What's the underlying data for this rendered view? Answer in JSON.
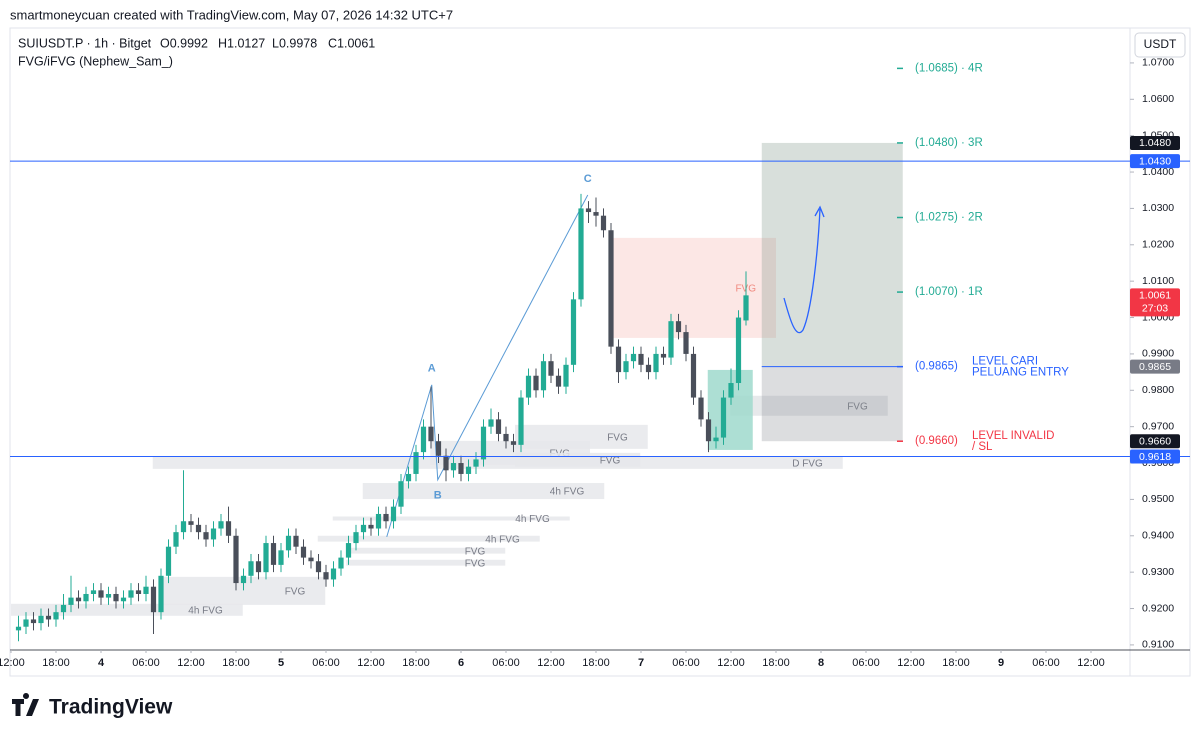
{
  "header": {
    "caption": "smartmoneycuan created with TradingView.com, May 07, 2026 14:32 UTC+7",
    "logo": "TradingView"
  },
  "chart_data": {
    "type": "candlestick",
    "symbol": "SUIUSDT.P · 1h · Bitget",
    "ohlc_legend": [
      "O0.9992",
      "H1.0127",
      "L0.9978",
      "C1.0061"
    ],
    "indicator": "FVG/iFVG (Nephew_Sam_)",
    "currency": "USDT",
    "up_color": "#22ab94",
    "down_color": "#4a4f5a",
    "x": [
      1,
      2,
      3,
      4,
      5,
      6,
      7,
      8,
      9,
      10,
      11,
      12,
      13,
      14,
      15,
      16,
      17,
      18,
      19,
      20,
      21,
      22,
      23,
      24,
      25,
      26,
      27,
      28,
      29,
      30,
      31,
      32,
      33,
      34,
      35,
      36,
      37,
      38,
      39,
      40,
      41,
      42,
      43,
      44,
      45,
      46,
      47,
      48,
      49,
      50,
      51,
      52,
      53,
      54,
      55,
      56,
      57,
      58,
      59,
      60,
      61,
      62,
      63,
      64,
      65,
      66,
      67,
      68,
      69,
      70,
      71,
      72,
      73,
      74,
      75,
      76,
      77,
      78,
      79,
      80,
      81,
      82,
      83,
      84,
      85,
      86,
      87,
      88,
      89,
      90,
      91,
      92,
      93,
      94,
      95,
      96,
      97,
      98
    ],
    "ohlc": [
      [
        0.914,
        0.918,
        0.911,
        0.915
      ],
      [
        0.915,
        0.919,
        0.913,
        0.917
      ],
      [
        0.917,
        0.919,
        0.914,
        0.916
      ],
      [
        0.916,
        0.92,
        0.914,
        0.918
      ],
      [
        0.918,
        0.92,
        0.915,
        0.917
      ],
      [
        0.917,
        0.921,
        0.915,
        0.919
      ],
      [
        0.919,
        0.924,
        0.917,
        0.921
      ],
      [
        0.921,
        0.929,
        0.919,
        0.923
      ],
      [
        0.923,
        0.925,
        0.92,
        0.922
      ],
      [
        0.922,
        0.926,
        0.92,
        0.924
      ],
      [
        0.924,
        0.927,
        0.922,
        0.925
      ],
      [
        0.925,
        0.927,
        0.921,
        0.923
      ],
      [
        0.923,
        0.926,
        0.921,
        0.924
      ],
      [
        0.924,
        0.926,
        0.92,
        0.922
      ],
      [
        0.922,
        0.925,
        0.92,
        0.923
      ],
      [
        0.923,
        0.927,
        0.921,
        0.925
      ],
      [
        0.925,
        0.927,
        0.922,
        0.924
      ],
      [
        0.924,
        0.929,
        0.922,
        0.926
      ],
      [
        0.926,
        0.928,
        0.913,
        0.919
      ],
      [
        0.919,
        0.931,
        0.917,
        0.929
      ],
      [
        0.929,
        0.939,
        0.927,
        0.937
      ],
      [
        0.937,
        0.943,
        0.935,
        0.941
      ],
      [
        0.941,
        0.958,
        0.939,
        0.944
      ],
      [
        0.944,
        0.946,
        0.941,
        0.943
      ],
      [
        0.943,
        0.945,
        0.939,
        0.941
      ],
      [
        0.941,
        0.943,
        0.937,
        0.939
      ],
      [
        0.939,
        0.944,
        0.937,
        0.942
      ],
      [
        0.942,
        0.946,
        0.94,
        0.944
      ],
      [
        0.944,
        0.948,
        0.938,
        0.94
      ],
      [
        0.94,
        0.942,
        0.925,
        0.927
      ],
      [
        0.927,
        0.931,
        0.925,
        0.929
      ],
      [
        0.929,
        0.935,
        0.927,
        0.933
      ],
      [
        0.933,
        0.935,
        0.928,
        0.93
      ],
      [
        0.93,
        0.94,
        0.928,
        0.938
      ],
      [
        0.938,
        0.94,
        0.93,
        0.932
      ],
      [
        0.932,
        0.938,
        0.93,
        0.936
      ],
      [
        0.936,
        0.942,
        0.934,
        0.94
      ],
      [
        0.94,
        0.942,
        0.935,
        0.937
      ],
      [
        0.937,
        0.939,
        0.932,
        0.934
      ],
      [
        0.934,
        0.936,
        0.931,
        0.933
      ],
      [
        0.933,
        0.935,
        0.928,
        0.93
      ],
      [
        0.93,
        0.932,
        0.926,
        0.928
      ],
      [
        0.928,
        0.933,
        0.926,
        0.931
      ],
      [
        0.931,
        0.936,
        0.929,
        0.934
      ],
      [
        0.934,
        0.94,
        0.932,
        0.938
      ],
      [
        0.938,
        0.943,
        0.936,
        0.941
      ],
      [
        0.941,
        0.945,
        0.939,
        0.943
      ],
      [
        0.943,
        0.945,
        0.94,
        0.942
      ],
      [
        0.942,
        0.948,
        0.94,
        0.946
      ],
      [
        0.946,
        0.948,
        0.942,
        0.944
      ],
      [
        0.944,
        0.95,
        0.942,
        0.948
      ],
      [
        0.948,
        0.957,
        0.946,
        0.955
      ],
      [
        0.955,
        0.959,
        0.953,
        0.957
      ],
      [
        0.957,
        0.965,
        0.955,
        0.963
      ],
      [
        0.963,
        0.972,
        0.961,
        0.97
      ],
      [
        0.97,
        0.981,
        0.964,
        0.966
      ],
      [
        0.966,
        0.968,
        0.96,
        0.962
      ],
      [
        0.962,
        0.964,
        0.955,
        0.958
      ],
      [
        0.958,
        0.962,
        0.956,
        0.96
      ],
      [
        0.96,
        0.962,
        0.955,
        0.957
      ],
      [
        0.957,
        0.961,
        0.955,
        0.959
      ],
      [
        0.959,
        0.963,
        0.957,
        0.961
      ],
      [
        0.961,
        0.972,
        0.959,
        0.97
      ],
      [
        0.97,
        0.975,
        0.968,
        0.972
      ],
      [
        0.972,
        0.974,
        0.966,
        0.968
      ],
      [
        0.968,
        0.97,
        0.964,
        0.966
      ],
      [
        0.966,
        0.968,
        0.963,
        0.965
      ],
      [
        0.965,
        0.98,
        0.963,
        0.978
      ],
      [
        0.978,
        0.986,
        0.976,
        0.984
      ],
      [
        0.984,
        0.986,
        0.978,
        0.98
      ],
      [
        0.98,
        0.99,
        0.978,
        0.988
      ],
      [
        0.988,
        0.99,
        0.982,
        0.984
      ],
      [
        0.984,
        0.986,
        0.979,
        0.981
      ],
      [
        0.981,
        0.989,
        0.979,
        0.987
      ],
      [
        0.987,
        1.007,
        0.985,
        1.005
      ],
      [
        1.005,
        1.034,
        1.003,
        1.03
      ],
      [
        1.03,
        1.032,
        1.026,
        1.029
      ],
      [
        1.029,
        1.033,
        1.025,
        1.028
      ],
      [
        1.028,
        1.03,
        1.022,
        1.024
      ],
      [
        1.024,
        1.026,
        0.99,
        0.992
      ],
      [
        0.992,
        0.994,
        0.982,
        0.985
      ],
      [
        0.985,
        0.99,
        0.983,
        0.988
      ],
      [
        0.988,
        0.992,
        0.986,
        0.99
      ],
      [
        0.99,
        0.992,
        0.985,
        0.987
      ],
      [
        0.987,
        0.989,
        0.983,
        0.985
      ],
      [
        0.985,
        0.992,
        0.983,
        0.99
      ],
      [
        0.99,
        0.992,
        0.987,
        0.989
      ],
      [
        0.989,
        1.001,
        0.987,
        0.999
      ],
      [
        0.999,
        1.001,
        0.994,
        0.996
      ],
      [
        0.996,
        0.998,
        0.988,
        0.99
      ],
      [
        0.99,
        0.992,
        0.976,
        0.978
      ],
      [
        0.978,
        0.98,
        0.97,
        0.972
      ],
      [
        0.972,
        0.974,
        0.963,
        0.966
      ],
      [
        0.966,
        0.97,
        0.964,
        0.967
      ],
      [
        0.967,
        0.98,
        0.965,
        0.978
      ],
      [
        0.978,
        0.986,
        0.976,
        0.982
      ],
      [
        0.982,
        1.002,
        0.98,
        1.0
      ],
      [
        0.9992,
        1.0127,
        0.9978,
        1.0061
      ]
    ],
    "xlim": [
      0,
      149
    ],
    "xticks": [
      {
        "value": 0,
        "label": "12:00"
      },
      {
        "value": 6,
        "label": "18:00"
      },
      {
        "value": 12,
        "label": "4"
      },
      {
        "value": 18,
        "label": "06:00"
      },
      {
        "value": 24,
        "label": "12:00"
      },
      {
        "value": 30,
        "label": "18:00"
      },
      {
        "value": 36,
        "label": "5"
      },
      {
        "value": 42,
        "label": "06:00"
      },
      {
        "value": 48,
        "label": "12:00"
      },
      {
        "value": 54,
        "label": "18:00"
      },
      {
        "value": 60,
        "label": "6"
      },
      {
        "value": 66,
        "label": "06:00"
      },
      {
        "value": 72,
        "label": "12:00"
      },
      {
        "value": 78,
        "label": "18:00"
      },
      {
        "value": 84,
        "label": "7"
      },
      {
        "value": 90,
        "label": "06:00"
      },
      {
        "value": 96,
        "label": "12:00"
      },
      {
        "value": 102,
        "label": "18:00"
      },
      {
        "value": 108,
        "label": "8"
      },
      {
        "value": 114,
        "label": "06:00"
      },
      {
        "value": 120,
        "label": "12:00"
      },
      {
        "value": 126,
        "label": "18:00"
      },
      {
        "value": 132,
        "label": "9"
      },
      {
        "value": 138,
        "label": "06:00"
      },
      {
        "value": 144,
        "label": "12:00"
      }
    ],
    "ylim": [
      0.9086,
      1.0796
    ],
    "yticks": [
      {
        "value": 0.91,
        "label": "0.9100"
      },
      {
        "value": 0.92,
        "label": "0.9200"
      },
      {
        "value": 0.93,
        "label": "0.9300"
      },
      {
        "value": 0.94,
        "label": "0.9400"
      },
      {
        "value": 0.95,
        "label": "0.9500"
      },
      {
        "value": 0.96,
        "label": "0.9600"
      },
      {
        "value": 0.97,
        "label": "0.9700"
      },
      {
        "value": 0.98,
        "label": "0.9800"
      },
      {
        "value": 0.99,
        "label": "0.9900"
      },
      {
        "value": 1.0,
        "label": "1.0000"
      },
      {
        "value": 1.01,
        "label": "1.0100"
      },
      {
        "value": 1.02,
        "label": "1.0200"
      },
      {
        "value": 1.03,
        "label": "1.0300"
      },
      {
        "value": 1.04,
        "label": "1.0400"
      },
      {
        "value": 1.05,
        "label": "1.0500"
      },
      {
        "value": 1.06,
        "label": "1.0600"
      },
      {
        "value": 1.07,
        "label": "1.0700"
      }
    ],
    "price_lines": [
      {
        "value": 1.043,
        "label": "1.0430",
        "color": "#2962ff"
      },
      {
        "value": 0.9618,
        "label": "0.9618",
        "color": "#2962ff"
      }
    ],
    "price_labels": [
      {
        "value": 1.048,
        "label": "1.0480",
        "color": "#131722"
      },
      {
        "value": 0.9865,
        "label": "0.9865",
        "color": "#787b86"
      },
      {
        "value": 0.966,
        "label": "0.9660",
        "color": "#131722"
      },
      {
        "value": 1.0061,
        "label": "1.0061",
        "sub": "27:03",
        "color": "#f23645"
      }
    ],
    "zones": [
      {
        "x": [
          80.1,
          102
        ],
        "y": [
          0.9944,
          1.0219
        ],
        "color": "#fbe3e1",
        "label": "FVG",
        "label_color": "#f08a80"
      },
      {
        "x": [
          95.9,
          116.9
        ],
        "y": [
          0.973,
          0.9785
        ],
        "color": "#e3e5e8",
        "label": "FVG",
        "label_color": "#787b86"
      },
      {
        "x": [
          18.9,
          110.9
        ],
        "y": [
          0.9584,
          0.9617
        ],
        "color": "#e6e8eb",
        "label": "D FVG",
        "label_color": "#787b86"
      },
      {
        "x": [
          67.2,
          84.9
        ],
        "y": [
          0.9639,
          0.9705
        ],
        "color": "#e6e8eb",
        "label": "FVG",
        "label_color": "#787b86"
      },
      {
        "x": [
          55.9,
          77.2
        ],
        "y": [
          0.9595,
          0.9661
        ],
        "color": "#e6e8eb",
        "label": "FVG",
        "label_color": "#787b86"
      },
      {
        "x": [
          67.2,
          83.9
        ],
        "y": [
          0.959,
          0.9628
        ],
        "color": "#e6e8eb",
        "label": "FVG",
        "label_color": "#787b86"
      },
      {
        "x": [
          46.9,
          79.1
        ],
        "y": [
          0.9501,
          0.9545
        ],
        "color": "#e6e8eb",
        "label": "4h FVG",
        "label_color": "#787b86"
      },
      {
        "x": [
          42.9,
          74.5
        ],
        "y": [
          0.9442,
          0.9453
        ],
        "color": "#e6e8eb",
        "label": "4h FVG",
        "label_color": "#787b86"
      },
      {
        "x": [
          40.9,
          70.5
        ],
        "y": [
          0.9384,
          0.94
        ],
        "color": "#e6e8eb",
        "label": "4h FVG",
        "label_color": "#787b86"
      },
      {
        "x": [
          44.7,
          65.9
        ],
        "y": [
          0.9351,
          0.9367
        ],
        "color": "#e6e8eb",
        "label": "FVG",
        "label_color": "#787b86"
      },
      {
        "x": [
          44.7,
          65.9
        ],
        "y": [
          0.9318,
          0.9334
        ],
        "color": "#e6e8eb",
        "label": "FVG",
        "label_color": "#787b86"
      },
      {
        "x": [
          19.9,
          41.9
        ],
        "y": [
          0.921,
          0.9287
        ],
        "color": "#e6e8eb",
        "label": "FVG",
        "label_color": "#787b86"
      },
      {
        "x": [
          0,
          30.9
        ],
        "y": [
          0.918,
          0.9213
        ],
        "color": "#e6e8eb",
        "label": "4h FVG",
        "label_color": "#787b86"
      },
      {
        "x": [
          92.9,
          98.9
        ],
        "y": [
          0.9636,
          0.9856
        ],
        "color": "#9fd9cc"
      }
    ],
    "abc": {
      "x": [
        50.1,
        56.1,
        56.9,
        76.9
      ],
      "y": [
        0.9397,
        0.9815,
        0.9554,
        1.0337
      ],
      "labels": [
        null,
        "A",
        "B",
        "C"
      ],
      "color": "#5b9bd5"
    },
    "position": {
      "x": [
        100.1,
        118.9
      ],
      "top": 1.048,
      "bottom": 0.966,
      "entry": 0.9865,
      "levels": [
        {
          "value": 1.0685,
          "label": "(1.0685) · 4R",
          "color": "#22ab94"
        },
        {
          "value": 1.048,
          "label": "(1.0480) · 3R",
          "color": "#22ab94"
        },
        {
          "value": 1.0275,
          "label": "(1.0275) · 2R",
          "color": "#22ab94"
        },
        {
          "value": 1.007,
          "label": "(1.0070) · 1R",
          "color": "#22ab94"
        },
        {
          "value": 0.9865,
          "label": "(0.9865)",
          "note": [
            "LEVEL CARI",
            "PELUANG ENTRY"
          ],
          "color": "#2962ff"
        },
        {
          "value": 0.966,
          "label": "(0.9660)",
          "note": [
            "LEVEL INVALID",
            "/ SL"
          ],
          "color": "#f23645"
        }
      ]
    }
  }
}
